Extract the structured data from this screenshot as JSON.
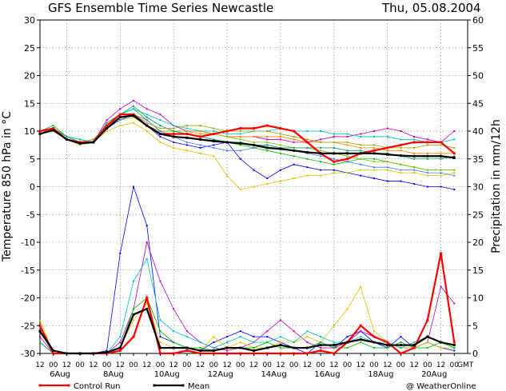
{
  "chart_data": {
    "type": "line",
    "title": "GFS Ensemble Time Series Newcastle",
    "date": "Thu, 05.08.2004",
    "ylabel_left": "Temperature 850 hPa in °C",
    "ylabel_right": "Precipitation in mm/12h",
    "ylim_left": [
      -30,
      30
    ],
    "ylim_right": [
      0,
      60
    ],
    "yticks_left": [
      30,
      25,
      20,
      15,
      10,
      5,
      0,
      -5,
      -10,
      -15,
      -20,
      -25,
      -30
    ],
    "yticks_right": [
      60,
      55,
      50,
      45,
      40,
      35,
      30,
      25,
      20,
      15,
      10,
      5,
      0
    ],
    "x_start_day": 5,
    "x_hours": [
      "12",
      "00",
      "12",
      "00",
      "12",
      "00",
      "12",
      "00",
      "12",
      "00",
      "12",
      "00",
      "12",
      "00",
      "12",
      "00",
      "12",
      "00",
      "12",
      "00",
      "12",
      "00",
      "12",
      "00",
      "12",
      "00",
      "12",
      "00",
      "12",
      "00",
      "12",
      "00"
    ],
    "x_dates": [
      "6Aug",
      "8Aug",
      "10Aug",
      "12Aug",
      "14Aug",
      "16Aug",
      "18Aug",
      "20Aug"
    ],
    "gmt_label": "GMT",
    "grid": true,
    "legend": [
      {
        "name": "Control Run",
        "color": "#ff0000"
      },
      {
        "name": "Mean",
        "color": "#000000"
      }
    ],
    "credit": "@ WeatherOnline",
    "temperature_series": [
      {
        "name": "Control Run",
        "color": "#ff0000",
        "values": [
          10,
          10.5,
          8.5,
          8,
          8,
          11,
          13,
          13,
          11,
          9.5,
          9.5,
          9.5,
          9,
          9.5,
          10,
          10.5,
          10.5,
          11,
          10.5,
          10,
          8,
          6,
          4.5,
          5,
          6,
          6.5,
          7,
          7.5,
          8,
          8,
          8,
          6
        ]
      },
      {
        "name": "Mean",
        "color": "#000000",
        "values": [
          9.5,
          10.2,
          8.5,
          7.8,
          8,
          10.5,
          12.5,
          12.8,
          11,
          9.5,
          9,
          8.8,
          8.5,
          8.2,
          8,
          7.8,
          7.5,
          7,
          6.8,
          6.5,
          6.2,
          6,
          6,
          6,
          6,
          6,
          5.8,
          5.6,
          5.5,
          5.5,
          5.5,
          5.2
        ]
      },
      {
        "name": "",
        "color": "#00c000",
        "values": [
          10,
          11,
          9,
          8.5,
          8,
          11,
          13,
          14,
          12,
          10,
          10,
          9.5,
          9,
          8.5,
          8,
          7.5,
          7,
          6.5,
          6,
          5.5,
          5,
          4.5,
          4,
          4.5,
          5,
          5,
          4.5,
          4,
          3.5,
          3,
          3,
          3
        ]
      },
      {
        "name": "",
        "color": "#0000ff",
        "values": [
          9.5,
          10,
          8.5,
          8,
          8.5,
          10.5,
          12,
          13,
          11,
          9,
          8,
          7.5,
          7,
          7.5,
          8,
          5,
          3,
          1.5,
          3,
          4,
          3.5,
          3,
          3,
          2.5,
          2,
          1.5,
          1,
          1,
          0.5,
          0,
          0,
          -0.5
        ]
      },
      {
        "name": "",
        "color": "#c000c0",
        "values": [
          10,
          10.5,
          8.5,
          8,
          8,
          12,
          14,
          15.5,
          14,
          13,
          11,
          10,
          10,
          9.5,
          9,
          9,
          9,
          8.5,
          8.5,
          8,
          8,
          8.5,
          9,
          9,
          9.5,
          10,
          10.5,
          10,
          9,
          8.5,
          8,
          10
        ]
      },
      {
        "name": "",
        "color": "#e0c000",
        "values": [
          9.5,
          10,
          8.5,
          7.5,
          8,
          10,
          11,
          11.5,
          10,
          8,
          7,
          6.5,
          6,
          5.5,
          2,
          -0.5,
          0,
          0.5,
          1,
          1.5,
          2,
          2,
          2.5,
          2.5,
          3,
          3,
          3,
          2.5,
          2.5,
          2,
          2,
          2.5
        ]
      },
      {
        "name": "",
        "color": "#00c0c0",
        "values": [
          10,
          10.5,
          9,
          8.5,
          8,
          11,
          13,
          14,
          13,
          12,
          11,
          10.5,
          10,
          10,
          9.5,
          9.5,
          10,
          10,
          10.5,
          10,
          10,
          10,
          9.5,
          9.5,
          9,
          9,
          9,
          8.5,
          8.5,
          8,
          8,
          8.5
        ]
      },
      {
        "name": "",
        "color": "#ff8000",
        "values": [
          9.5,
          10.5,
          8.5,
          8,
          8,
          10.5,
          12.5,
          13,
          12,
          10,
          10,
          10,
          9.5,
          9.5,
          9,
          9,
          9,
          9,
          9,
          8.5,
          8,
          8,
          8,
          7.5,
          7,
          7,
          6.5,
          6.5,
          6,
          6,
          6,
          6
        ]
      },
      {
        "name": "",
        "color": "#80c000",
        "values": [
          10,
          10,
          8.5,
          8,
          8,
          11,
          12,
          12.5,
          11,
          10,
          10,
          10,
          10,
          9.5,
          9,
          8.5,
          8,
          8,
          7.5,
          7,
          7,
          6.5,
          6,
          5.5,
          5,
          4.5,
          4.5,
          4,
          3.5,
          3,
          3,
          3
        ]
      },
      {
        "name": "",
        "color": "#4080ff",
        "values": [
          9.5,
          10.5,
          8.5,
          8,
          8,
          10.5,
          12,
          13,
          12,
          10,
          9,
          8,
          7.5,
          7,
          6.5,
          6.5,
          7,
          7.5,
          7,
          6.5,
          6,
          5.5,
          5,
          4.5,
          4,
          3.5,
          3.5,
          3,
          3,
          2.5,
          2.5,
          2
        ]
      },
      {
        "name": "",
        "color": "#00a060",
        "values": [
          10,
          10.5,
          9,
          8,
          8,
          11.5,
          13,
          14.5,
          12.5,
          11,
          10,
          9.5,
          9,
          8.5,
          8,
          8,
          7.5,
          7.5,
          7,
          7,
          7,
          7,
          7,
          6.5,
          6.5,
          6,
          6,
          5.5,
          5,
          5,
          5,
          5.5
        ]
      },
      {
        "name": "",
        "color": "#a0a000",
        "values": [
          9.5,
          10,
          8.5,
          8,
          8.5,
          11,
          12.5,
          13,
          11.5,
          10.5,
          10.5,
          11,
          11,
          10.5,
          10,
          10,
          10,
          10,
          9.5,
          9,
          8.5,
          8,
          8,
          8,
          7.5,
          7.5,
          7,
          7,
          7,
          7.5,
          7.5,
          7
        ]
      }
    ],
    "precipitation_series": [
      {
        "name": "Control Run",
        "color": "#ff0000",
        "values": [
          5,
          0,
          0,
          0,
          0,
          0,
          0.5,
          3,
          10,
          0,
          0,
          0.5,
          0,
          0,
          0,
          0,
          0,
          0,
          0,
          0,
          0,
          0.5,
          0,
          2,
          5,
          3,
          2,
          0,
          1,
          6,
          18,
          2
        ]
      },
      {
        "name": "Mean",
        "color": "#000000",
        "values": [
          4,
          0.5,
          0,
          0,
          0,
          0.2,
          1,
          7,
          8,
          1,
          1,
          1,
          0.5,
          0.5,
          1,
          1,
          0.5,
          1,
          1.5,
          1,
          1,
          1.5,
          1.5,
          2,
          2.5,
          2,
          1.5,
          1.5,
          1.5,
          3,
          2,
          1.5
        ]
      },
      {
        "name": "",
        "color": "#0000ff",
        "values": [
          2,
          0,
          0,
          0,
          0,
          0.5,
          18,
          30,
          23,
          3,
          2,
          1,
          0.5,
          2,
          3,
          4,
          3,
          3,
          2,
          1,
          0,
          2,
          1,
          3,
          4,
          2,
          1,
          3,
          1,
          2,
          1,
          0.5
        ]
      },
      {
        "name": "",
        "color": "#c000c0",
        "values": [
          3,
          0,
          0,
          0,
          0,
          0,
          2,
          8,
          20,
          13,
          8,
          4,
          2,
          1,
          0.5,
          1,
          2,
          4,
          6,
          4,
          2,
          1,
          1,
          2,
          4,
          3,
          2,
          1,
          1,
          2,
          12,
          9
        ]
      },
      {
        "name": "",
        "color": "#e0c000",
        "values": [
          6,
          0,
          0,
          0,
          0,
          0,
          1,
          6,
          9,
          2,
          1,
          1,
          0.5,
          3,
          1,
          2,
          1,
          1,
          2,
          2,
          3,
          2,
          5,
          8,
          12,
          4,
          2,
          1,
          1,
          2,
          1,
          1
        ]
      },
      {
        "name": "",
        "color": "#00c0c0",
        "values": [
          4,
          0,
          0,
          0,
          0,
          0,
          3,
          13,
          17,
          6,
          4,
          3,
          2,
          1,
          2,
          3,
          2,
          2,
          3,
          2,
          4,
          3,
          2,
          2,
          3,
          2,
          2,
          1,
          2,
          3,
          2,
          1
        ]
      },
      {
        "name": "",
        "color": "#00c000",
        "values": [
          2,
          0,
          0,
          0,
          0,
          0,
          1,
          8,
          10,
          4,
          2,
          1,
          1,
          0.5,
          1,
          1,
          1,
          2,
          1,
          1,
          1,
          2,
          1,
          1,
          2,
          1,
          1,
          2,
          1,
          1,
          2,
          1
        ]
      }
    ]
  }
}
